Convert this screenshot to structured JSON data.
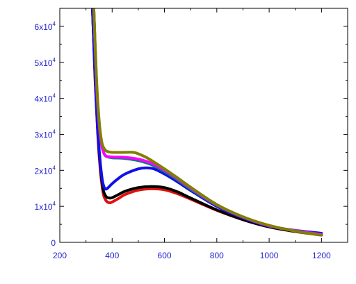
{
  "chart_data": {
    "type": "line",
    "title": "",
    "xlabel": "",
    "ylabel": "",
    "xlim": [
      200,
      1300
    ],
    "ylim": [
      0,
      65000
    ],
    "x_ticks": [
      200,
      400,
      600,
      800,
      1000,
      1200
    ],
    "x_tick_labels": [
      "200",
      "400",
      "600",
      "800",
      "1000",
      "1200"
    ],
    "y_ticks": [
      0,
      10000,
      20000,
      30000,
      40000,
      50000,
      60000
    ],
    "y_tick_labels": [
      {
        "base": "0",
        "exp": ""
      },
      {
        "base": "1x10",
        "exp": "4"
      },
      {
        "base": "2x10",
        "exp": "4"
      },
      {
        "base": "3x10",
        "exp": "4"
      },
      {
        "base": "4x10",
        "exp": "4"
      },
      {
        "base": "5x10",
        "exp": "4"
      },
      {
        "base": "6x10",
        "exp": "4"
      }
    ],
    "grid": false,
    "tick_color": "#1f1fd0",
    "series": [
      {
        "color": "#e01010",
        "x": [
          325,
          335,
          345,
          355,
          365,
          372,
          380,
          390,
          400,
          425,
          450,
          500,
          550,
          600,
          650,
          700,
          800,
          900,
          1000,
          1100,
          1200
        ],
        "y": [
          65000,
          45000,
          30000,
          20000,
          14000,
          12200,
          11300,
          11000,
          11200,
          12200,
          13300,
          14500,
          14900,
          14600,
          13500,
          12000,
          8900,
          6300,
          4300,
          3000,
          2000
        ]
      },
      {
        "color": "#000000",
        "x": [
          325,
          335,
          345,
          355,
          365,
          372,
          380,
          390,
          400,
          425,
          450,
          500,
          550,
          600,
          650,
          700,
          800,
          900,
          1000,
          1100,
          1200
        ],
        "y": [
          65000,
          46000,
          31000,
          21000,
          15000,
          13300,
          12500,
          12300,
          12400,
          13300,
          14200,
          15200,
          15500,
          15200,
          14000,
          12300,
          9000,
          6300,
          4300,
          3000,
          2100
        ]
      },
      {
        "color": "#1010e8",
        "x": [
          325,
          335,
          345,
          355,
          362,
          368,
          375,
          385,
          400,
          425,
          450,
          500,
          530,
          560,
          600,
          650,
          700,
          800,
          900,
          1000,
          1100,
          1200
        ],
        "y": [
          65000,
          46000,
          31000,
          22000,
          17500,
          15600,
          14800,
          15200,
          16300,
          17800,
          19000,
          20400,
          20700,
          20400,
          19000,
          16800,
          14400,
          10000,
          6800,
          4500,
          3300,
          2500
        ]
      },
      {
        "color": "#008080",
        "x": [
          330,
          340,
          350,
          360,
          370,
          380,
          400,
          450,
          500,
          550,
          600,
          650,
          700,
          800,
          900,
          1000,
          1100,
          1200
        ],
        "y": [
          65000,
          45000,
          33000,
          27000,
          24500,
          23800,
          23500,
          23300,
          22700,
          21600,
          19700,
          17400,
          14800,
          10300,
          7000,
          4600,
          3200,
          2200
        ]
      },
      {
        "color": "#ff00ff",
        "x": [
          330,
          340,
          350,
          360,
          370,
          380,
          400,
          450,
          500,
          550,
          600,
          650,
          700,
          800,
          900,
          1000,
          1100,
          1200
        ],
        "y": [
          65000,
          45000,
          33000,
          27000,
          24600,
          23900,
          23700,
          23600,
          23100,
          22000,
          20100,
          17700,
          15100,
          10400,
          7000,
          4600,
          3200,
          2200
        ]
      },
      {
        "color": "#808000",
        "x": [
          330,
          340,
          350,
          360,
          370,
          380,
          400,
          450,
          480,
          500,
          530,
          560,
          600,
          650,
          700,
          800,
          900,
          1000,
          1100,
          1200
        ],
        "y": [
          65000,
          46000,
          34000,
          28000,
          26000,
          25300,
          25000,
          25000,
          25000,
          24600,
          23600,
          22300,
          20400,
          17900,
          15300,
          10500,
          7100,
          4700,
          3100,
          2000
        ]
      }
    ]
  }
}
